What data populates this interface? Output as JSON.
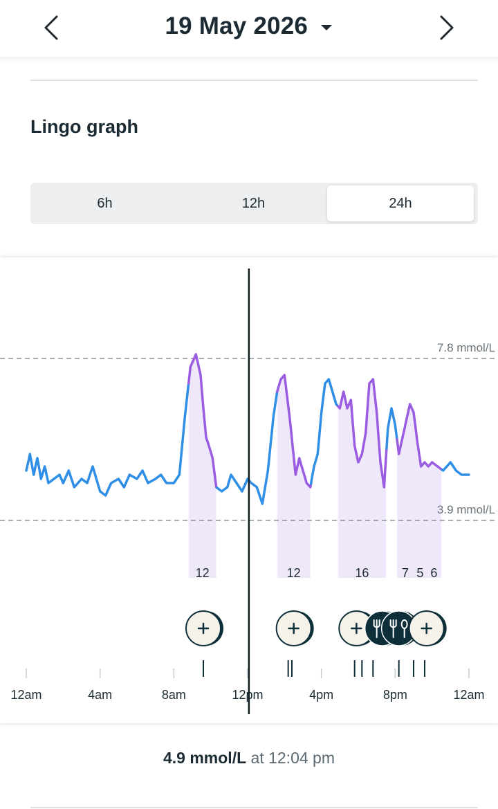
{
  "header": {
    "date": "19 May 2026",
    "prev_icon": "chevron-left-icon",
    "next_icon": "chevron-right-icon",
    "dropdown_icon": "caret-down-icon"
  },
  "section": {
    "title": "Lingo graph"
  },
  "range_selector": {
    "options": [
      "6h",
      "12h",
      "24h"
    ],
    "selected": "24h"
  },
  "chart_data": {
    "type": "line",
    "y_unit": "mmol/L",
    "ylim": [
      2.5,
      10.0
    ],
    "xlim_hours": [
      0,
      24
    ],
    "threshold_lines": [
      {
        "value": 7.8,
        "label": "7.8 mmol/L"
      },
      {
        "value": 3.9,
        "label": "3.9 mmol/L"
      }
    ],
    "x_ticks": [
      "12am",
      "4am",
      "8am",
      "12pm",
      "4pm",
      "8pm",
      "12am"
    ],
    "colors": {
      "normal": "#2f8fe6",
      "spike": "#9a5ce0",
      "spike_fill": "#efe8fb",
      "marker": "#0e2f3a"
    },
    "series": [
      {
        "x": [
          0,
          0.2,
          0.4,
          0.6,
          0.8,
          1.0,
          1.2,
          1.5,
          1.8,
          2.0,
          2.3,
          2.6,
          3.0,
          3.3,
          3.6,
          4.0,
          4.3,
          4.6,
          5.0,
          5.3,
          5.6,
          6.0,
          6.3,
          6.6,
          7.0,
          7.3,
          7.6,
          8.0,
          8.3,
          8.6,
          8.9,
          9.2,
          9.45,
          9.6,
          9.75,
          9.9,
          10.1,
          10.3,
          10.6,
          10.9,
          11.1,
          11.4,
          11.7,
          12.0,
          12.2,
          12.5,
          12.8,
          13.1,
          13.4,
          13.6,
          13.8,
          14.0,
          14.3,
          14.6,
          14.8,
          15.0,
          15.2,
          15.4,
          15.6,
          15.8,
          16.0,
          16.2,
          16.4,
          16.6,
          16.8,
          17.0,
          17.2,
          17.4,
          17.6,
          17.8,
          18.0,
          18.2,
          18.4,
          18.6,
          18.8,
          19.0,
          19.2,
          19.4,
          19.6,
          19.8,
          20.0,
          20.2,
          20.4,
          20.6,
          20.8,
          21.0,
          21.2,
          21.4,
          21.6,
          21.8,
          22.0,
          22.3,
          22.6,
          23.0,
          23.3,
          23.6,
          24.0
        ],
        "y": [
          5.1,
          5.5,
          5.0,
          5.4,
          4.9,
          5.2,
          4.8,
          4.9,
          5.0,
          4.8,
          5.1,
          4.7,
          4.9,
          4.8,
          5.2,
          4.6,
          4.5,
          4.8,
          4.9,
          4.7,
          5.0,
          4.9,
          5.1,
          4.8,
          4.9,
          5.0,
          4.8,
          4.8,
          5.0,
          6.4,
          7.6,
          7.9,
          7.4,
          6.6,
          5.9,
          5.7,
          5.4,
          4.7,
          4.6,
          4.7,
          5.0,
          4.8,
          4.6,
          4.9,
          4.8,
          4.7,
          4.3,
          5.1,
          6.4,
          7.0,
          7.3,
          7.4,
          6.3,
          5.0,
          5.4,
          5.1,
          4.8,
          4.7,
          5.2,
          5.5,
          6.5,
          7.2,
          7.3,
          7.0,
          6.7,
          6.6,
          7.0,
          6.6,
          6.8,
          5.7,
          5.3,
          5.5,
          6.0,
          7.2,
          7.3,
          6.5,
          5.3,
          4.7,
          6.1,
          6.6,
          6.2,
          5.5,
          5.9,
          6.3,
          6.7,
          6.5,
          5.8,
          5.2,
          5.3,
          5.2,
          5.3,
          5.2,
          5.1,
          5.3,
          5.1,
          5.0,
          5.0
        ]
      }
    ],
    "spikes": [
      {
        "start": 8.8,
        "end": 10.3,
        "score": "12"
      },
      {
        "start": 13.6,
        "end": 15.4,
        "score": "12"
      },
      {
        "start": 16.9,
        "end": 19.5,
        "score": "16"
      },
      {
        "start": 20.1,
        "end": 21.0,
        "score": "7"
      },
      {
        "start": 21.0,
        "end": 21.7,
        "score": "5"
      },
      {
        "start": 21.7,
        "end": 22.5,
        "score": "6"
      }
    ],
    "log_markers": [
      {
        "x": 9.6,
        "kind": "add"
      },
      {
        "x": 14.5,
        "kind": "add"
      },
      {
        "x": 17.9,
        "kind": "add"
      },
      {
        "x": 19.3,
        "kind": "meal"
      },
      {
        "x": 20.2,
        "kind": "meal"
      },
      {
        "x": 21.7,
        "kind": "add"
      }
    ],
    "event_ticks": [
      9.6,
      14.2,
      14.4,
      17.8,
      18.2,
      18.8,
      20.2,
      21.0,
      21.6
    ],
    "cursor_x": 12.07
  },
  "readout": {
    "value": "4.9 mmol/L",
    "time": "at 12:04 pm"
  }
}
